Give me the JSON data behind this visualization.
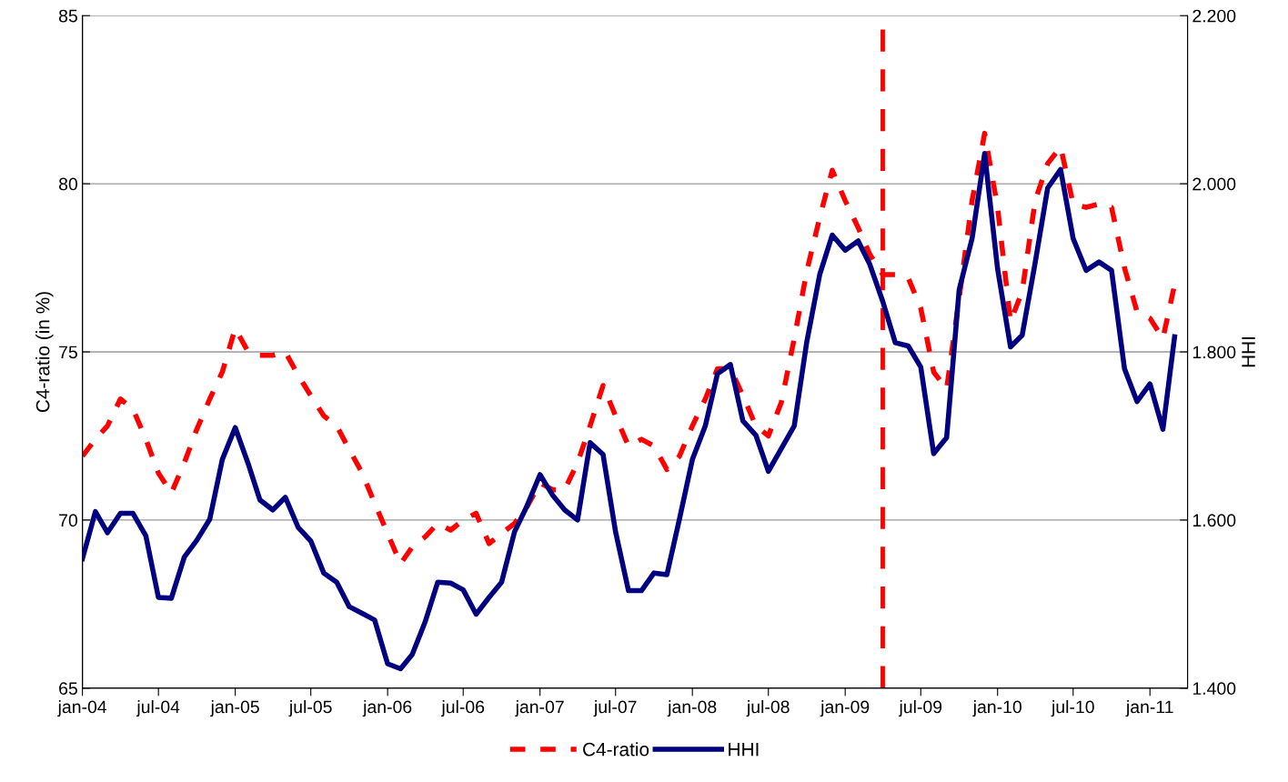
{
  "chart_data": {
    "type": "line",
    "ylabel": "C4-ratio (in %)",
    "y2label": "HHI",
    "x": [
      "2004-01",
      "2004-02",
      "2004-03",
      "2004-04",
      "2004-05",
      "2004-06",
      "2004-07",
      "2004-08",
      "2004-09",
      "2004-10",
      "2004-11",
      "2004-12",
      "2005-01",
      "2005-02",
      "2005-03",
      "2005-04",
      "2005-05",
      "2005-06",
      "2005-07",
      "2005-08",
      "2005-09",
      "2005-10",
      "2005-11",
      "2005-12",
      "2006-01",
      "2006-02",
      "2006-03",
      "2006-04",
      "2006-05",
      "2006-06",
      "2006-07",
      "2006-08",
      "2006-09",
      "2006-10",
      "2006-11",
      "2006-12",
      "2007-01",
      "2007-02",
      "2007-03",
      "2007-04",
      "2007-05",
      "2007-06",
      "2007-07",
      "2007-08",
      "2007-09",
      "2007-10",
      "2007-11",
      "2007-12",
      "2008-01",
      "2008-02",
      "2008-03",
      "2008-04",
      "2008-05",
      "2008-06",
      "2008-07",
      "2008-08",
      "2008-09",
      "2008-10",
      "2008-11",
      "2008-12",
      "2009-01",
      "2009-02",
      "2009-03",
      "2009-04",
      "2009-05",
      "2009-06",
      "2009-07",
      "2009-08",
      "2009-09",
      "2009-10",
      "2009-11",
      "2009-12",
      "2010-01",
      "2010-02",
      "2010-03",
      "2010-04",
      "2010-05",
      "2010-06",
      "2010-07",
      "2010-08",
      "2010-09",
      "2010-10",
      "2010-11",
      "2010-12",
      "2011-01",
      "2011-02",
      "2011-03"
    ],
    "series": [
      {
        "name": "C4-ratio",
        "color": "#ff0000",
        "line_style": "dashed",
        "values": [
          71.9,
          72.4,
          72.8,
          73.6,
          73.3,
          72.4,
          71.4,
          70.8,
          71.7,
          72.7,
          73.6,
          74.4,
          75.7,
          75.0,
          74.9,
          74.9,
          75.0,
          74.3,
          73.7,
          73.1,
          72.8,
          72.1,
          71.4,
          70.5,
          69.6,
          68.7,
          69.2,
          69.5,
          69.9,
          69.7,
          70.0,
          70.2,
          69.3,
          69.6,
          69.9,
          70.4,
          71.1,
          70.9,
          70.9,
          71.7,
          72.8,
          74.0,
          73.1,
          72.2,
          72.4,
          72.2,
          71.5,
          71.9,
          72.8,
          73.6,
          74.5,
          74.5,
          73.7,
          72.8,
          72.5,
          73.5,
          75.4,
          77.4,
          79.0,
          80.4,
          79.5,
          78.7,
          77.9,
          77.3,
          77.3,
          77.2,
          76.3,
          74.4,
          73.9,
          76.6,
          79.5,
          81.5,
          79.3,
          75.9,
          76.8,
          79.5,
          80.6,
          81.1,
          79.4,
          79.3,
          79.4,
          79.3,
          77.5,
          76.2,
          76.0,
          75.4,
          77.0
        ]
      },
      {
        "name": "HHI",
        "color": "#000080",
        "line_style": "solid",
        "axis": "y2",
        "values": [
          1554,
          1610,
          1585,
          1608,
          1608,
          1581,
          1508,
          1507,
          1556,
          1576,
          1601,
          1672,
          1710,
          1667,
          1624,
          1612,
          1627,
          1591,
          1575,
          1537,
          1526,
          1497,
          1489,
          1481,
          1429,
          1423,
          1440,
          1479,
          1526,
          1525,
          1517,
          1488,
          1508,
          1526,
          1586,
          1617,
          1654,
          1629,
          1612,
          1600,
          1692,
          1678,
          1586,
          1516,
          1516,
          1537,
          1535,
          1601,
          1672,
          1712,
          1774,
          1785,
          1718,
          1701,
          1658,
          1685,
          1712,
          1812,
          1892,
          1939,
          1921,
          1932,
          1904,
          1860,
          1811,
          1807,
          1782,
          1679,
          1698,
          1874,
          1935,
          2036,
          1899,
          1806,
          1820,
          1906,
          1995,
          2017,
          1935,
          1897,
          1907,
          1897,
          1780,
          1741,
          1762,
          1708,
          1818
        ]
      }
    ],
    "xlim": [
      "2004-01",
      "2011-04"
    ],
    "xticks": [
      {
        "value": "2004-01",
        "label": "jan-04"
      },
      {
        "value": "2004-07",
        "label": "jul-04"
      },
      {
        "value": "2005-01",
        "label": "jan-05"
      },
      {
        "value": "2005-07",
        "label": "jul-05"
      },
      {
        "value": "2006-01",
        "label": "jan-06"
      },
      {
        "value": "2006-07",
        "label": "jul-06"
      },
      {
        "value": "2007-01",
        "label": "jan-07"
      },
      {
        "value": "2007-07",
        "label": "jul-07"
      },
      {
        "value": "2008-01",
        "label": "jan-08"
      },
      {
        "value": "2008-07",
        "label": "jul-08"
      },
      {
        "value": "2009-01",
        "label": "jan-09"
      },
      {
        "value": "2009-07",
        "label": "jul-09"
      },
      {
        "value": "2010-01",
        "label": "jan-10"
      },
      {
        "value": "2010-07",
        "label": "jul-10"
      },
      {
        "value": "2011-01",
        "label": "jan-11"
      }
    ],
    "ylim": [
      65,
      85
    ],
    "yticks": [
      65,
      70,
      75,
      80,
      85
    ],
    "y2lim": [
      1400,
      2200
    ],
    "y2ticks": [
      {
        "value": 1400,
        "label": "1.400"
      },
      {
        "value": 1600,
        "label": "1.600"
      },
      {
        "value": 1800,
        "label": "1.800"
      },
      {
        "value": 2000,
        "label": "2.000"
      },
      {
        "value": 2200,
        "label": "2.200"
      }
    ],
    "ref_lines": [
      {
        "axis": "x",
        "value": "2009-04",
        "color": "#ff0000",
        "line_style": "dashed"
      }
    ],
    "grid": "y",
    "legend": "bottom"
  }
}
